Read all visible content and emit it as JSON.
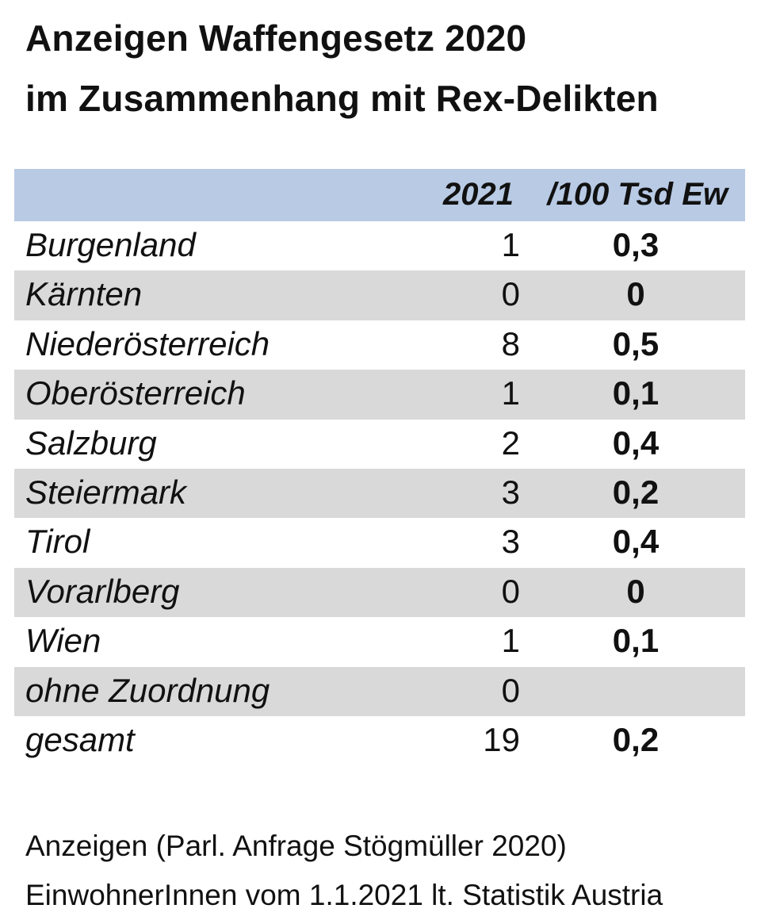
{
  "title": {
    "line1": "Anzeigen Waffengesetz 2020",
    "line2": "im Zusammenhang mit Rex-Delikten"
  },
  "table": {
    "headers": {
      "name": "",
      "year": "2021",
      "rate": "/100 Tsd Ew"
    },
    "rows": [
      {
        "name": "Burgenland",
        "count": "1",
        "rate": "0,3"
      },
      {
        "name": "Kärnten",
        "count": "0",
        "rate": "0"
      },
      {
        "name": "Niederösterreich",
        "count": "8",
        "rate": "0,5"
      },
      {
        "name": "Oberösterreich",
        "count": "1",
        "rate": "0,1"
      },
      {
        "name": "Salzburg",
        "count": "2",
        "rate": "0,4"
      },
      {
        "name": "Steiermark",
        "count": "3",
        "rate": "0,2"
      },
      {
        "name": "Tirol",
        "count": "3",
        "rate": "0,4"
      },
      {
        "name": "Vorarlberg",
        "count": "0",
        "rate": "0"
      },
      {
        "name": "Wien",
        "count": "1",
        "rate": "0,1"
      },
      {
        "name": "ohne Zuordnung",
        "count": "0",
        "rate": ""
      },
      {
        "name": "gesamt",
        "count": "19",
        "rate": "0,2"
      }
    ]
  },
  "notes": {
    "source1": "Anzeigen (Parl. Anfrage Stögmüller 2020)",
    "source2": "EinwohnerInnen vom 1.1.2021 lt. Statistik Austria"
  },
  "colors": {
    "header_bg": "#b8cae4",
    "stripe_bg": "#d9d9d9",
    "text": "#111111"
  }
}
